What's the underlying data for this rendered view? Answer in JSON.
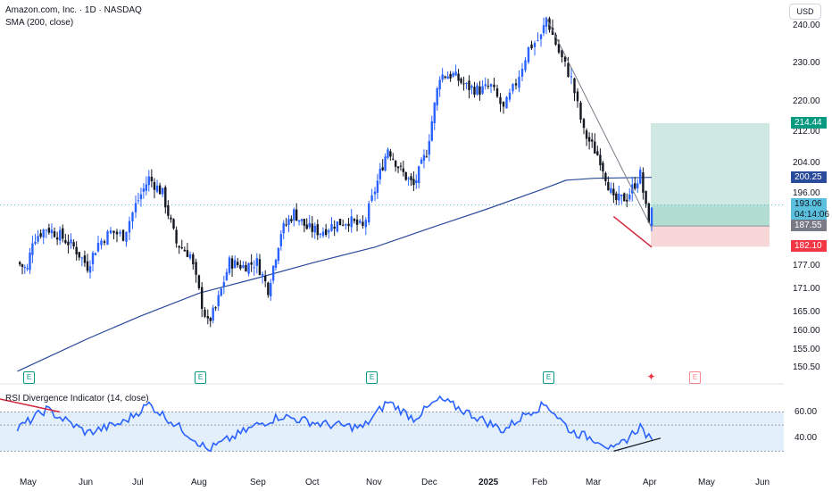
{
  "header": {
    "title": "Amazon.com, Inc. · 1D · NASDAQ",
    "sma_label": "SMA (200, close)",
    "currency": "USD",
    "rsi_label": "RSI Divergence Indicator (14, close)"
  },
  "chart_data": {
    "type": "candlestick",
    "price_axis": {
      "ticks": [
        "240.00",
        "230.00",
        "220.00",
        "212.00",
        "204.00",
        "196.00",
        "187.55",
        "182.10",
        "177.00",
        "171.00",
        "165.00",
        "160.00",
        "155.00",
        "150.50"
      ],
      "values": [
        240,
        230,
        220,
        212,
        204,
        196,
        187.55,
        182.1,
        177,
        171,
        165,
        160,
        155,
        150.5
      ],
      "ylim": [
        149,
        242
      ]
    },
    "rsi_axis": {
      "ticks": [
        "60.00",
        "40.00"
      ],
      "values": [
        60,
        40
      ],
      "upper_band": 60,
      "lower_band": 30,
      "mid": 50
    },
    "x_axis": {
      "labels": [
        "May",
        "Jun",
        "Jul",
        "Aug",
        "Sep",
        "Oct",
        "Nov",
        "Dec",
        "2025",
        "Feb",
        "Mar",
        "Apr",
        "May",
        "Jun"
      ],
      "bold": [
        "2025"
      ]
    },
    "close_series": [
      {
        "date": "Apr 22",
        "close": 178
      },
      {
        "date": "Apr 30",
        "close": 176
      },
      {
        "date": "May 3",
        "close": 184
      },
      {
        "date": "May 10",
        "close": 187
      },
      {
        "date": "May 17",
        "close": 185
      },
      {
        "date": "May 24",
        "close": 182
      },
      {
        "date": "May 31",
        "close": 177
      },
      {
        "date": "Jun 7",
        "close": 183
      },
      {
        "date": "Jun 14",
        "close": 186
      },
      {
        "date": "Jun 21",
        "close": 185
      },
      {
        "date": "Jun 28",
        "close": 193
      },
      {
        "date": "Jul 5",
        "close": 200
      },
      {
        "date": "Jul 12",
        "close": 196
      },
      {
        "date": "Jul 19",
        "close": 183
      },
      {
        "date": "Jul 26",
        "close": 180
      },
      {
        "date": "Aug 2",
        "close": 167
      },
      {
        "date": "Aug 5",
        "close": 162
      },
      {
        "date": "Aug 9",
        "close": 166
      },
      {
        "date": "Aug 16",
        "close": 178
      },
      {
        "date": "Aug 23",
        "close": 177
      },
      {
        "date": "Aug 30",
        "close": 178
      },
      {
        "date": "Sep 6",
        "close": 171
      },
      {
        "date": "Sep 13",
        "close": 186
      },
      {
        "date": "Sep 20",
        "close": 191
      },
      {
        "date": "Sep 27",
        "close": 187
      },
      {
        "date": "Oct 4",
        "close": 186
      },
      {
        "date": "Oct 11",
        "close": 188
      },
      {
        "date": "Oct 18",
        "close": 189
      },
      {
        "date": "Oct 25",
        "close": 187
      },
      {
        "date": "Nov 1",
        "close": 197
      },
      {
        "date": "Nov 8",
        "close": 208
      },
      {
        "date": "Nov 15",
        "close": 202
      },
      {
        "date": "Nov 22",
        "close": 198
      },
      {
        "date": "Nov 29",
        "close": 207
      },
      {
        "date": "Dec 6",
        "close": 227
      },
      {
        "date": "Dec 13",
        "close": 227
      },
      {
        "date": "Dec 20",
        "close": 224
      },
      {
        "date": "Dec 27",
        "close": 223
      },
      {
        "date": "Jan 3",
        "close": 224
      },
      {
        "date": "Jan 10",
        "close": 218
      },
      {
        "date": "Jan 17",
        "close": 225
      },
      {
        "date": "Jan 24",
        "close": 234
      },
      {
        "date": "Jan 31",
        "close": 237
      },
      {
        "date": "Feb 4",
        "close": 242
      },
      {
        "date": "Feb 11",
        "close": 233
      },
      {
        "date": "Feb 18",
        "close": 226
      },
      {
        "date": "Feb 25",
        "close": 212
      },
      {
        "date": "Mar 4",
        "close": 205
      },
      {
        "date": "Mar 11",
        "close": 194
      },
      {
        "date": "Mar 18",
        "close": 195
      },
      {
        "date": "Mar 25",
        "close": 201
      },
      {
        "date": "Mar 28",
        "close": 192
      },
      {
        "date": "Mar 31",
        "close": 187
      },
      {
        "date": "Apr 1",
        "close": 193
      }
    ],
    "sma_series": [
      {
        "date": "Apr 22",
        "value": 149.5
      },
      {
        "date": "Jun 1",
        "value": 158
      },
      {
        "date": "Jul 1",
        "value": 164
      },
      {
        "date": "Aug 1",
        "value": 170
      },
      {
        "date": "Sep 1",
        "value": 174
      },
      {
        "date": "Oct 1",
        "value": 178
      },
      {
        "date": "Nov 1",
        "value": 182
      },
      {
        "date": "Dec 1",
        "value": 187
      },
      {
        "date": "Jan 1",
        "value": 192
      },
      {
        "date": "Feb 1",
        "value": 197
      },
      {
        "date": "Feb 15",
        "value": 199.5
      },
      {
        "date": "Mar 1",
        "value": 200
      },
      {
        "date": "Apr 1",
        "value": 200.25
      }
    ],
    "rsi_series": [
      {
        "date": "Apr 22",
        "value": 47
      },
      {
        "date": "May 10",
        "value": 62
      },
      {
        "date": "May 31",
        "value": 44
      },
      {
        "date": "Jun 21",
        "value": 52
      },
      {
        "date": "Jul 5",
        "value": 66
      },
      {
        "date": "Jul 26",
        "value": 42
      },
      {
        "date": "Aug 5",
        "value": 31
      },
      {
        "date": "Aug 30",
        "value": 50
      },
      {
        "date": "Sep 13",
        "value": 57
      },
      {
        "date": "Oct 4",
        "value": 51
      },
      {
        "date": "Oct 25",
        "value": 48
      },
      {
        "date": "Nov 8",
        "value": 68
      },
      {
        "date": "Nov 22",
        "value": 55
      },
      {
        "date": "Dec 6",
        "value": 70
      },
      {
        "date": "Dec 27",
        "value": 55
      },
      {
        "date": "Jan 10",
        "value": 46
      },
      {
        "date": "Jan 24",
        "value": 60
      },
      {
        "date": "Feb 4",
        "value": 66
      },
      {
        "date": "Feb 18",
        "value": 45
      },
      {
        "date": "Mar 4",
        "value": 38
      },
      {
        "date": "Mar 11",
        "value": 30
      },
      {
        "date": "Mar 25",
        "value": 49
      },
      {
        "date": "Mar 31",
        "value": 37
      },
      {
        "date": "Apr 1",
        "value": 40
      }
    ],
    "current": {
      "price": "193.06",
      "countdown": "04:14:06",
      "sma": "200.25"
    },
    "position": {
      "target": "214.44",
      "entry": "187.55",
      "stop": "182.10"
    },
    "earnings_markers": [
      "E",
      "E",
      "E",
      "E",
      "E"
    ],
    "colors": {
      "up": "#2962ff",
      "down": "#131722",
      "sma": "#2a4a9b",
      "rsi": "#2962ff",
      "rsi_band": "#e3f0fb",
      "target_zone": "#cfe9e2",
      "stop_zone": "#f8d7d9",
      "target_tag": "#089981",
      "stop_tag": "#f23645",
      "current_tag": "#5bc0de",
      "sma_tag": "#2a4a9b",
      "entry_tag": "#787b86",
      "divergence": "#d1263b",
      "trend": "#787b86"
    }
  }
}
